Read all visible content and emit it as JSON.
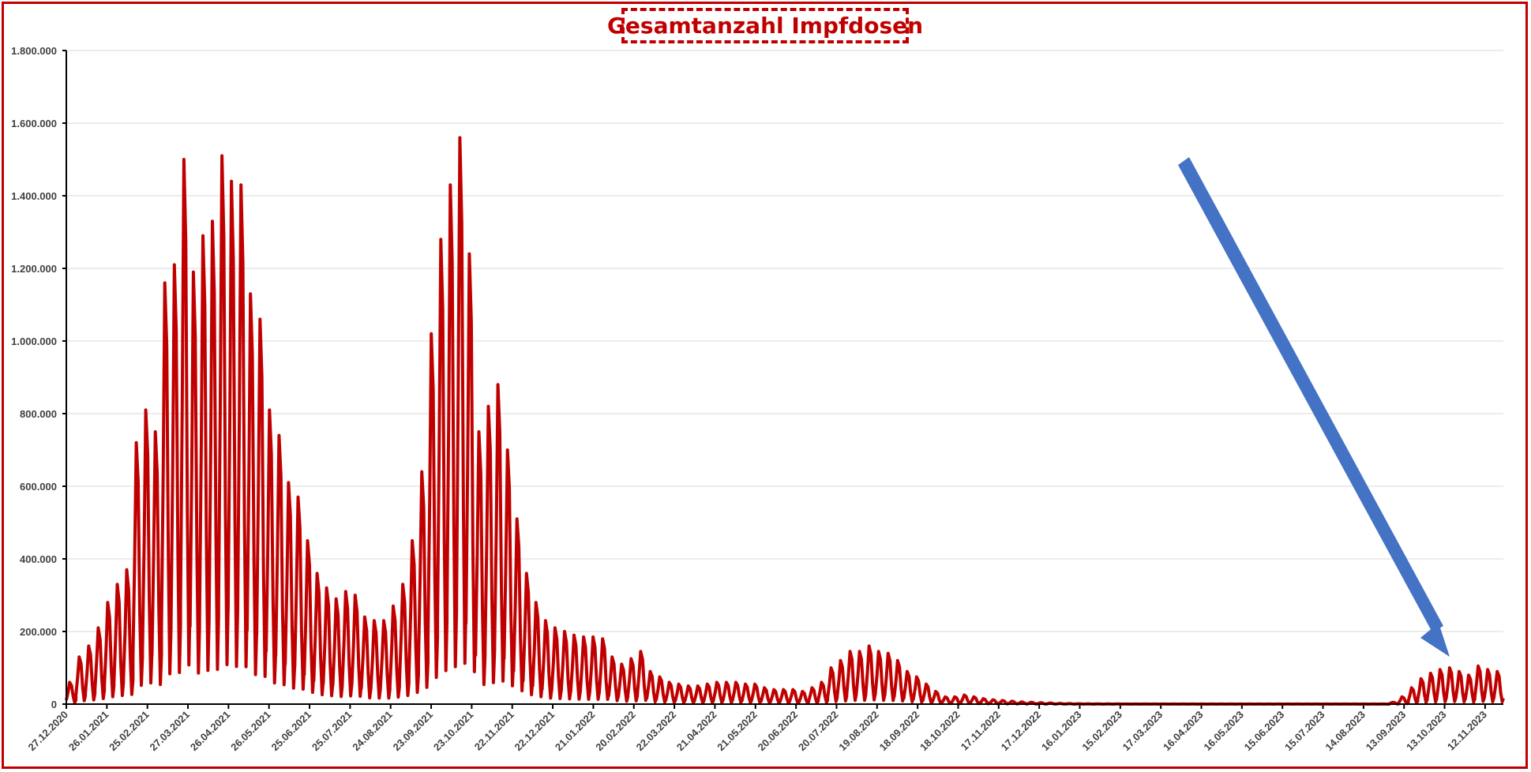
{
  "chart_data": {
    "type": "line",
    "title": "Gesamtanzahl Impfdosen",
    "xlabel": "",
    "ylabel": "",
    "ylim": [
      0,
      1800000
    ],
    "grid": true,
    "y_ticks": [
      "0",
      "200.000",
      "400.000",
      "600.000",
      "800.000",
      "1.000.000",
      "1.200.000",
      "1.400.000",
      "1.600.000",
      "1.800.000"
    ],
    "x_tick_labels": [
      "27.12.2020",
      "26.01.2021",
      "25.02.2021",
      "27.03.2021",
      "26.04.2021",
      "26.05.2021",
      "25.06.2021",
      "25.07.2021",
      "24.08.2021",
      "23.09.2021",
      "23.10.2021",
      "22.11.2021",
      "22.12.2021",
      "21.01.2022",
      "20.02.2022",
      "22.03.2022",
      "21.04.2022",
      "21.05.2022",
      "20.06.2022",
      "20.07.2022",
      "19.08.2022",
      "18.09.2022",
      "18.10.2022",
      "17.11.2022",
      "17.12.2022",
      "16.01.2023",
      "15.02.2023",
      "17.03.2023",
      "16.04.2023",
      "16.05.2023",
      "15.06.2023",
      "15.07.2023",
      "14.08.2023",
      "13.09.2023",
      "13.10.2023",
      "12.11.2023"
    ],
    "series": [
      {
        "color": "#c00000",
        "envelope_note_omitted": true,
        "weekly_peak_values": [
          [
            0,
            60000
          ],
          [
            1,
            130000
          ],
          [
            2,
            160000
          ],
          [
            3,
            210000
          ],
          [
            4,
            280000
          ],
          [
            5,
            330000
          ],
          [
            6,
            370000
          ],
          [
            7,
            720000
          ],
          [
            8,
            810000
          ],
          [
            9,
            750000
          ],
          [
            10,
            1160000
          ],
          [
            11,
            1210000
          ],
          [
            12,
            1500000
          ],
          [
            13,
            1190000
          ],
          [
            14,
            1290000
          ],
          [
            15,
            1330000
          ],
          [
            16,
            1510000
          ],
          [
            17,
            1440000
          ],
          [
            18,
            1430000
          ],
          [
            19,
            1130000
          ],
          [
            20,
            1060000
          ],
          [
            21,
            810000
          ],
          [
            22,
            740000
          ],
          [
            23,
            610000
          ],
          [
            24,
            570000
          ],
          [
            25,
            450000
          ],
          [
            26,
            360000
          ],
          [
            27,
            320000
          ],
          [
            28,
            290000
          ],
          [
            29,
            310000
          ],
          [
            30,
            300000
          ],
          [
            31,
            240000
          ],
          [
            32,
            230000
          ],
          [
            33,
            230000
          ],
          [
            34,
            270000
          ],
          [
            35,
            330000
          ],
          [
            36,
            450000
          ],
          [
            37,
            640000
          ],
          [
            38,
            1020000
          ],
          [
            39,
            1280000
          ],
          [
            40,
            1430000
          ],
          [
            41,
            1560000
          ],
          [
            42,
            1240000
          ],
          [
            43,
            750000
          ],
          [
            44,
            820000
          ],
          [
            45,
            880000
          ],
          [
            46,
            700000
          ],
          [
            47,
            510000
          ],
          [
            48,
            360000
          ],
          [
            49,
            280000
          ],
          [
            50,
            230000
          ],
          [
            51,
            210000
          ],
          [
            52,
            200000
          ],
          [
            53,
            190000
          ],
          [
            54,
            185000
          ],
          [
            55,
            185000
          ],
          [
            56,
            180000
          ],
          [
            57,
            130000
          ],
          [
            58,
            110000
          ],
          [
            59,
            125000
          ],
          [
            60,
            145000
          ],
          [
            61,
            90000
          ],
          [
            62,
            75000
          ],
          [
            63,
            60000
          ],
          [
            64,
            55000
          ],
          [
            65,
            50000
          ],
          [
            66,
            50000
          ],
          [
            67,
            55000
          ],
          [
            68,
            60000
          ],
          [
            69,
            60000
          ],
          [
            70,
            60000
          ],
          [
            71,
            55000
          ],
          [
            72,
            55000
          ],
          [
            73,
            45000
          ],
          [
            74,
            40000
          ],
          [
            75,
            40000
          ],
          [
            76,
            40000
          ],
          [
            77,
            35000
          ],
          [
            78,
            45000
          ],
          [
            79,
            60000
          ],
          [
            80,
            100000
          ],
          [
            81,
            120000
          ],
          [
            82,
            145000
          ],
          [
            83,
            145000
          ],
          [
            84,
            160000
          ],
          [
            85,
            145000
          ],
          [
            86,
            140000
          ],
          [
            87,
            120000
          ],
          [
            88,
            90000
          ],
          [
            89,
            75000
          ],
          [
            90,
            55000
          ],
          [
            91,
            35000
          ],
          [
            92,
            20000
          ],
          [
            93,
            20000
          ],
          [
            94,
            25000
          ],
          [
            95,
            20000
          ],
          [
            96,
            15000
          ],
          [
            97,
            12000
          ],
          [
            98,
            10000
          ],
          [
            99,
            8000
          ],
          [
            100,
            6000
          ],
          [
            101,
            5000
          ],
          [
            102,
            4000
          ],
          [
            103,
            3000
          ],
          [
            104,
            2000
          ],
          [
            105,
            1500
          ],
          [
            106,
            1000
          ],
          [
            107,
            800
          ],
          [
            108,
            600
          ],
          [
            109,
            500
          ],
          [
            110,
            400
          ],
          [
            111,
            300
          ],
          [
            112,
            300
          ],
          [
            113,
            300
          ],
          [
            114,
            300
          ],
          [
            115,
            300
          ],
          [
            116,
            300
          ],
          [
            117,
            300
          ],
          [
            118,
            300
          ],
          [
            119,
            300
          ],
          [
            120,
            300
          ],
          [
            121,
            300
          ],
          [
            122,
            300
          ],
          [
            123,
            300
          ],
          [
            124,
            300
          ],
          [
            125,
            300
          ],
          [
            126,
            300
          ],
          [
            127,
            300
          ],
          [
            128,
            300
          ],
          [
            129,
            300
          ],
          [
            130,
            300
          ],
          [
            131,
            300
          ],
          [
            132,
            300
          ],
          [
            133,
            300
          ],
          [
            134,
            300
          ],
          [
            135,
            300
          ],
          [
            136,
            300
          ],
          [
            137,
            300
          ],
          [
            138,
            300
          ],
          [
            139,
            5000
          ],
          [
            140,
            20000
          ],
          [
            141,
            45000
          ],
          [
            142,
            70000
          ],
          [
            143,
            85000
          ],
          [
            144,
            95000
          ],
          [
            145,
            100000
          ],
          [
            146,
            90000
          ],
          [
            147,
            80000
          ],
          [
            148,
            105000
          ],
          [
            149,
            95000
          ],
          [
            150,
            90000
          ]
        ]
      }
    ]
  }
}
